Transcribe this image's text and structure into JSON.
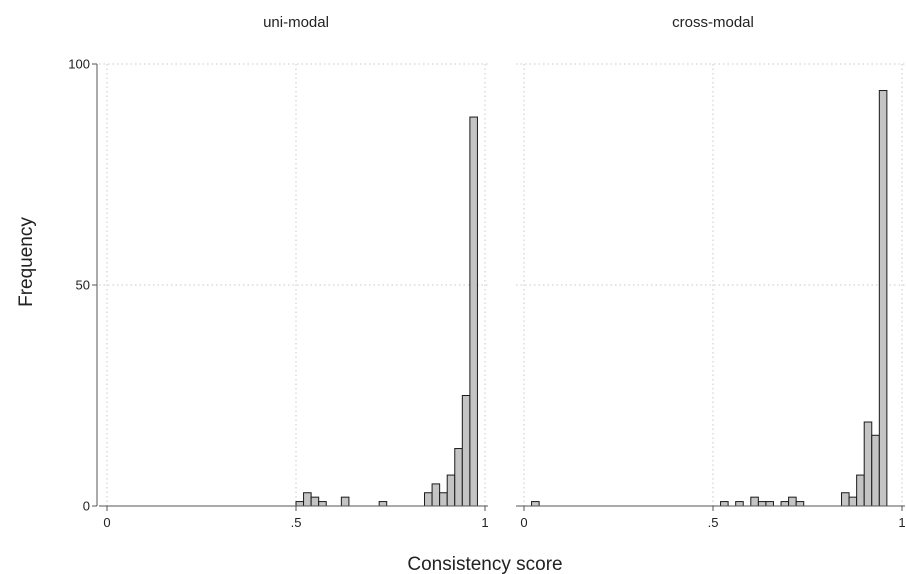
{
  "chart_data": {
    "type": "bar",
    "subtype": "histogram",
    "xlabel": "Consistency score",
    "ylabel": "Frequency",
    "xlim": [
      0,
      1
    ],
    "ylim": [
      0,
      100
    ],
    "x_ticks": [
      {
        "value": 0,
        "label": "0"
      },
      {
        "value": 0.5,
        "label": ".5"
      },
      {
        "value": 1,
        "label": "1"
      }
    ],
    "y_ticks": [
      {
        "value": 0,
        "label": "0"
      },
      {
        "value": 50,
        "label": "50"
      },
      {
        "value": 100,
        "label": "100"
      }
    ],
    "bin_width": 0.02,
    "grid": true,
    "panels": [
      {
        "title": "uni-modal",
        "bins": [
          {
            "x": 0.5,
            "count": 1
          },
          {
            "x": 0.52,
            "count": 3
          },
          {
            "x": 0.54,
            "count": 2
          },
          {
            "x": 0.56,
            "count": 1
          },
          {
            "x": 0.62,
            "count": 2
          },
          {
            "x": 0.72,
            "count": 1
          },
          {
            "x": 0.84,
            "count": 3
          },
          {
            "x": 0.86,
            "count": 5
          },
          {
            "x": 0.88,
            "count": 3
          },
          {
            "x": 0.9,
            "count": 7
          },
          {
            "x": 0.92,
            "count": 13
          },
          {
            "x": 0.94,
            "count": 25
          },
          {
            "x": 0.96,
            "count": 88
          }
        ]
      },
      {
        "title": "cross-modal",
        "bins": [
          {
            "x": 0.02,
            "count": 1
          },
          {
            "x": 0.52,
            "count": 1
          },
          {
            "x": 0.56,
            "count": 1
          },
          {
            "x": 0.6,
            "count": 2
          },
          {
            "x": 0.62,
            "count": 1
          },
          {
            "x": 0.64,
            "count": 1
          },
          {
            "x": 0.68,
            "count": 1
          },
          {
            "x": 0.7,
            "count": 2
          },
          {
            "x": 0.72,
            "count": 1
          },
          {
            "x": 0.84,
            "count": 3
          },
          {
            "x": 0.86,
            "count": 2
          },
          {
            "x": 0.88,
            "count": 7
          },
          {
            "x": 0.9,
            "count": 19
          },
          {
            "x": 0.92,
            "count": 16
          },
          {
            "x": 0.94,
            "count": 94
          }
        ]
      }
    ]
  }
}
